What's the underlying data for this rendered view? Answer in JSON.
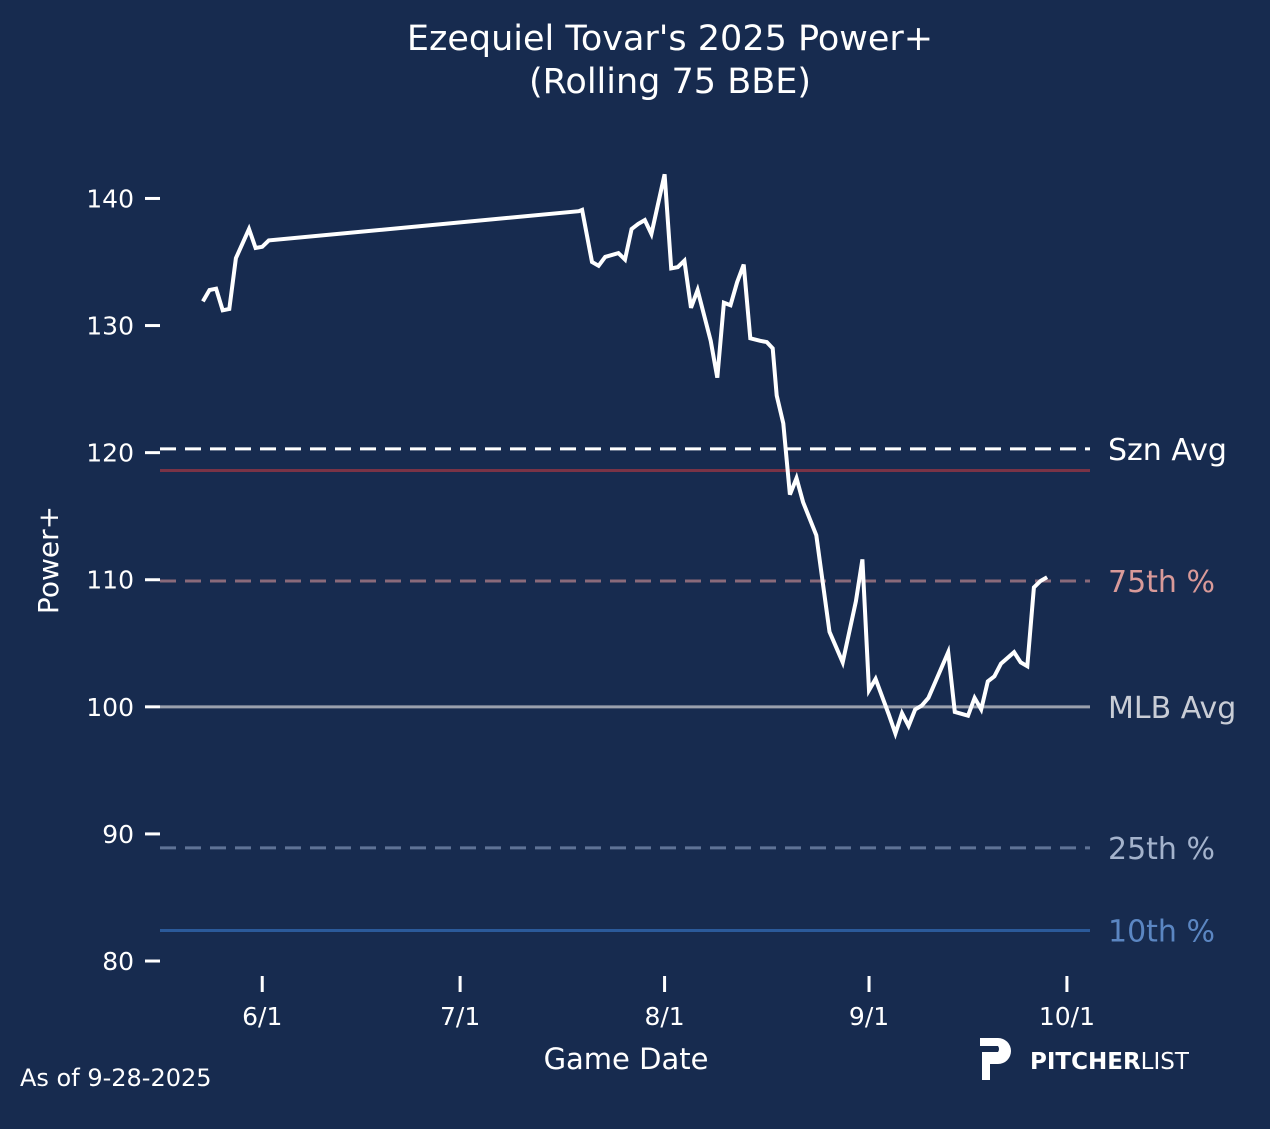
{
  "chart_data": {
    "type": "line",
    "title": "Ezequiel Tovar's 2025 Power+",
    "subtitle": "(Rolling 75 BBE)",
    "xlabel": "Game Date",
    "ylabel": "Power+",
    "x_unit": "days since 6/1",
    "xlim": [
      -15.5,
      125.5
    ],
    "ylim": [
      78.9,
      144.6
    ],
    "x_ticks": [
      {
        "label": "6/1",
        "x": 0
      },
      {
        "label": "7/1",
        "x": 30
      },
      {
        "label": "8/1",
        "x": 61
      },
      {
        "label": "9/1",
        "x": 92
      },
      {
        "label": "10/1",
        "x": 122
      }
    ],
    "y_ticks": [
      80,
      90,
      100,
      110,
      120,
      130,
      140
    ],
    "grid": false,
    "reference_lines": [
      {
        "label": "Szn Avg",
        "value": 120.3,
        "color": "#ffffff",
        "dash": true
      },
      {
        "label": "",
        "value": 118.6,
        "color": "#7a3346",
        "dash": false
      },
      {
        "label": "75th %",
        "value": 109.9,
        "color": "#d99a99",
        "line_color": "#8a6a7a",
        "dash": true
      },
      {
        "label": "MLB Avg",
        "value": 100,
        "color": "#c9cdd6",
        "line_color": "#9aa0ad",
        "dash": false
      },
      {
        "label": "25th %",
        "value": 88.9,
        "color": "#a4b3cc",
        "line_color": "#5f7396",
        "dash": true
      },
      {
        "label": "10th %",
        "value": 82.4,
        "color": "#5b86c2",
        "line_color": "#2b5a9a",
        "dash": false
      }
    ],
    "series": [
      {
        "name": "Power+",
        "color": "#ffffff",
        "x": [
          -9,
          -8,
          -7,
          -6,
          -5,
          -4,
          -2,
          -1,
          0,
          1,
          48,
          48.5,
          50,
          51,
          52,
          54,
          55,
          56,
          57,
          58,
          59,
          61,
          62,
          63,
          64,
          65,
          66,
          68,
          69,
          70,
          71,
          72,
          73,
          74,
          75.5,
          76.5,
          77.4,
          78,
          79,
          80,
          81,
          82,
          84,
          86,
          87,
          88,
          90,
          91,
          92,
          93,
          95,
          96,
          97,
          98,
          99,
          100,
          101,
          104,
          105,
          107,
          108,
          109,
          110,
          111,
          112,
          114,
          115,
          116,
          117,
          118,
          119
        ],
        "values": [
          131.9,
          132.8,
          132.9,
          131.2,
          131.3,
          135.3,
          137.6,
          136.1,
          136.2,
          136.7,
          139.0,
          139.1,
          135.0,
          134.7,
          135.4,
          135.7,
          135.2,
          137.6,
          138.0,
          138.3,
          137.2,
          141.9,
          134.5,
          134.6,
          135.1,
          131.4,
          132.8,
          128.8,
          125.9,
          131.8,
          131.6,
          133.4,
          134.8,
          129.0,
          128.8,
          128.7,
          128.2,
          124.5,
          122.3,
          116.7,
          118.0,
          116.1,
          113.5,
          105.9,
          104.7,
          103.5,
          108.3,
          111.6,
          101.3,
          102.2,
          99.4,
          97.9,
          99.5,
          98.5,
          99.8,
          100.1,
          100.7,
          104.3,
          99.6,
          99.3,
          100.7,
          99.8,
          102.0,
          102.4,
          103.4,
          104.3,
          103.5,
          103.2,
          109.4,
          109.9,
          110.2
        ]
      }
    ]
  },
  "footer": {
    "as_of": "As of 9-28-2025",
    "logo_text_bold": "PITCHER",
    "logo_text_light": "LIST"
  }
}
